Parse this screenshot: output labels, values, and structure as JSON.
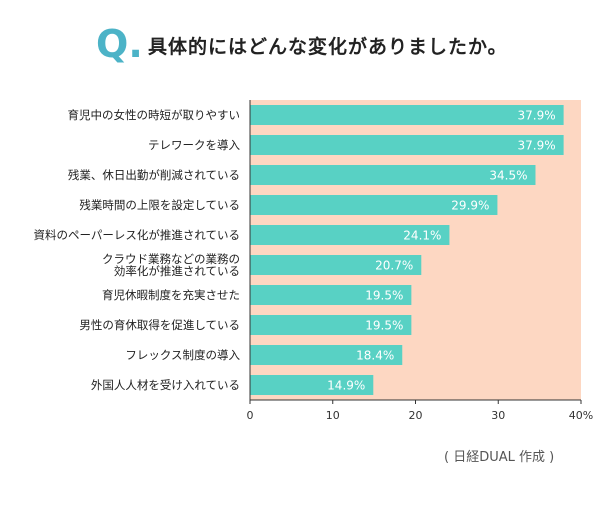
{
  "header": {
    "q_letter": "Q",
    "q_dot": ".",
    "question": "具体的にはどんな変化がありましたか。"
  },
  "source_note": "( 日経DUAL 作成 )",
  "colors": {
    "bar": "#58d1c4",
    "plot_background": "#fdd7c2",
    "accent": "#4cb3c7",
    "value_label": "#ffffff"
  },
  "chart_data": {
    "type": "bar",
    "orientation": "horizontal",
    "categories": [
      "育児中の女性の時短が取りやすい",
      "テレワークを導入",
      "残業、休日出勤が削減されている",
      "残業時間の上限を設定している",
      "資料のペーパーレス化が推進されている",
      "クラウド業務などの業務の\n効率化が推進されている",
      "育児休暇制度を充実させた",
      "男性の育休取得を促進している",
      "フレックス制度の導入",
      "外国人人材を受け入れている"
    ],
    "values": [
      37.9,
      37.9,
      34.5,
      29.9,
      24.1,
      20.7,
      19.5,
      19.5,
      18.4,
      14.9
    ],
    "value_labels": [
      "37.9%",
      "37.9%",
      "34.5%",
      "29.9%",
      "24.1%",
      "20.7%",
      "19.5%",
      "19.5%",
      "18.4%",
      "14.9%"
    ],
    "xlim": [
      0,
      40
    ],
    "x_ticks": [
      0,
      10,
      20,
      30,
      40
    ],
    "x_tick_labels": [
      "0",
      "10",
      "20",
      "30",
      "40%"
    ],
    "grid": false
  }
}
